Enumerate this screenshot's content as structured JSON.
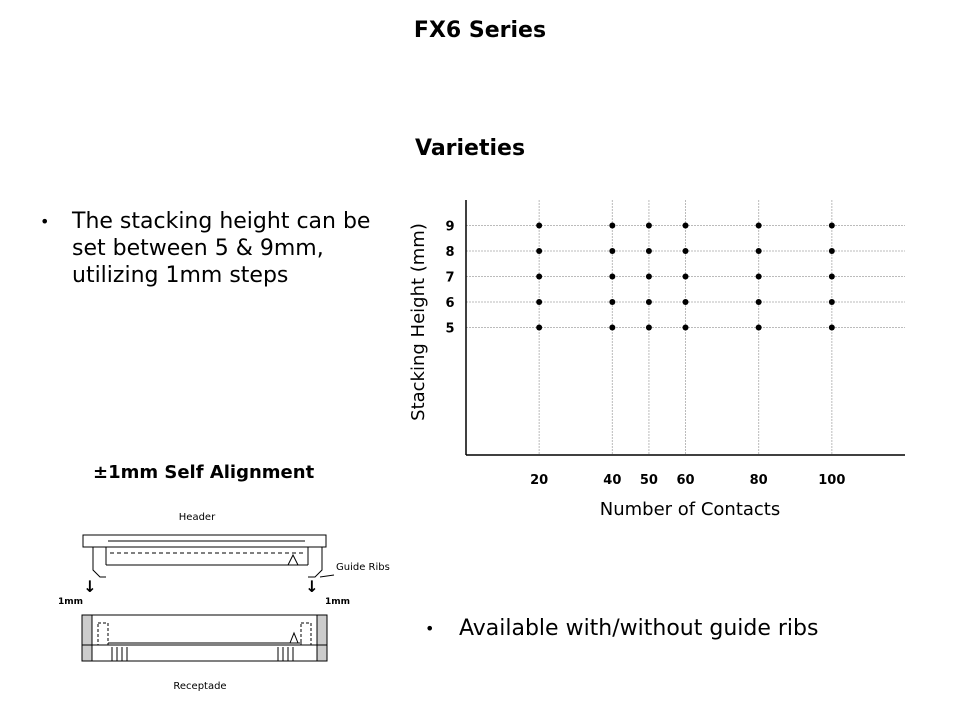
{
  "slide": {
    "title": "FX6 Series",
    "subtitle": "Varieties",
    "bullets": [
      "The stacking height can be set between 5 & 9mm, utilizing 1mm steps",
      "Available with/without guide ribs"
    ],
    "bullet_symbol": "•"
  },
  "diagram": {
    "title": "±1mm Self Alignment",
    "header_label": "Header",
    "guide_ribs_label": "Guide Ribs",
    "left_offset_label": "1mm",
    "right_offset_label": "1mm",
    "receptacle_label": "Receptade"
  },
  "chart_data": {
    "type": "scatter",
    "xlabel": "Number of Contacts",
    "ylabel": "Stacking Height (mm)",
    "x_ticks": [
      20,
      40,
      50,
      60,
      80,
      100
    ],
    "y_ticks": [
      5,
      6,
      7,
      8,
      9
    ],
    "xlim": [
      0,
      120
    ],
    "ylim": [
      0,
      10
    ],
    "grid": true,
    "points": [
      [
        20,
        5
      ],
      [
        20,
        6
      ],
      [
        20,
        7
      ],
      [
        20,
        8
      ],
      [
        20,
        9
      ],
      [
        40,
        5
      ],
      [
        40,
        6
      ],
      [
        40,
        7
      ],
      [
        40,
        8
      ],
      [
        40,
        9
      ],
      [
        50,
        5
      ],
      [
        50,
        6
      ],
      [
        50,
        7
      ],
      [
        50,
        8
      ],
      [
        50,
        9
      ],
      [
        60,
        5
      ],
      [
        60,
        6
      ],
      [
        60,
        7
      ],
      [
        60,
        8
      ],
      [
        60,
        9
      ],
      [
        80,
        5
      ],
      [
        80,
        6
      ],
      [
        80,
        7
      ],
      [
        80,
        8
      ],
      [
        80,
        9
      ],
      [
        100,
        5
      ],
      [
        100,
        6
      ],
      [
        100,
        7
      ],
      [
        100,
        8
      ],
      [
        100,
        9
      ]
    ]
  }
}
